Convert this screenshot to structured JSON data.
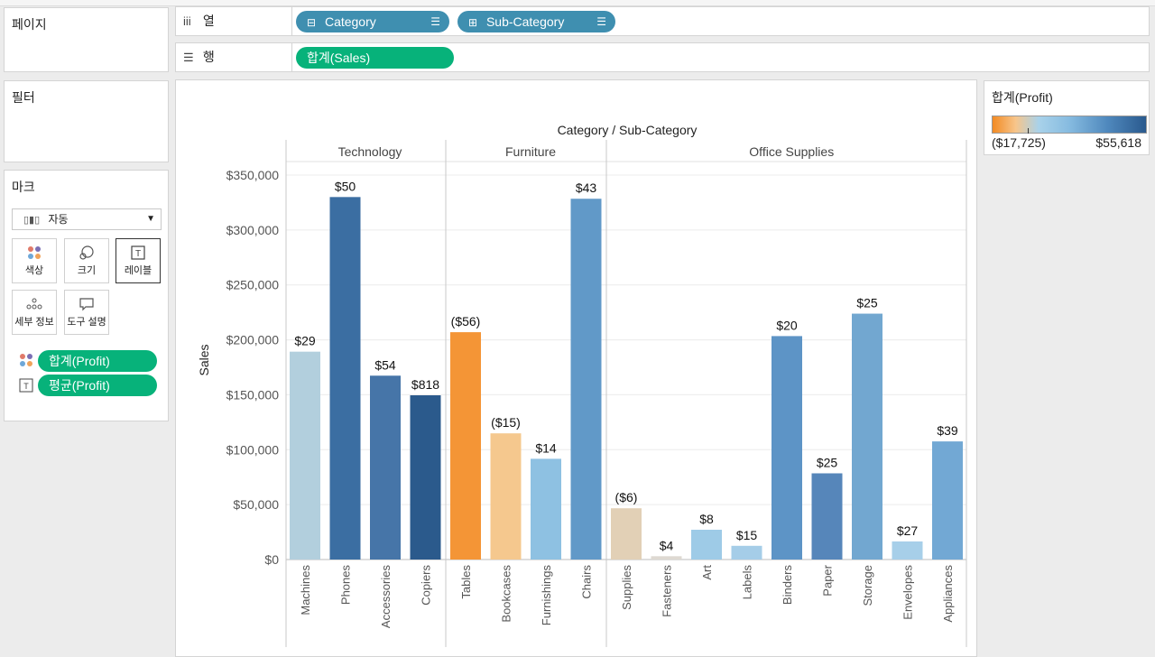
{
  "left_panels": {
    "pages_title": "페이지",
    "filters_title": "필터",
    "marks_title": "마크",
    "mark_type": "자동",
    "mark_buttons": {
      "color": "색상",
      "size": "크기",
      "label": "레이블",
      "detail": "세부 정보",
      "tooltip": "도구 설명"
    },
    "mark_pills": [
      "합계(Profit)",
      "평균(Profit)"
    ]
  },
  "shelves": {
    "columns_label": "열",
    "rows_label": "행",
    "columns": [
      "Category",
      "Sub-Category"
    ],
    "rows": [
      "합계(Sales)"
    ]
  },
  "legend": {
    "title": "합계(Profit)",
    "min": "($17,725)",
    "max": "$55,618"
  },
  "colors": {
    "pill_dimension": "#3f8fb0",
    "pill_measure": "#07b27a"
  },
  "chart_data": {
    "type": "bar",
    "title": "Category / Sub-Category",
    "ylabel": "Sales",
    "ylim": [
      0,
      350000
    ],
    "y_ticks": [
      "$0",
      "$50,000",
      "$100,000",
      "$150,000",
      "$200,000",
      "$250,000",
      "$300,000",
      "$350,000"
    ],
    "groups": [
      {
        "name": "Technology",
        "categories": [
          "Machines",
          "Phones",
          "Accessories",
          "Copiers"
        ],
        "values": [
          189239,
          330007,
          167380,
          149528
        ],
        "labels": [
          "$29",
          "$50",
          "$54",
          "$818"
        ],
        "colors": [
          "#b2cfdd",
          "#3b6ea2",
          "#4675a8",
          "#2b5a8c"
        ]
      },
      {
        "name": "Furniture",
        "categories": [
          "Tables",
          "Bookcases",
          "Furnishings",
          "Chairs"
        ],
        "values": [
          206966,
          114880,
          91705,
          328449
        ],
        "labels": [
          "($56)",
          "($15)",
          "$14",
          "$43"
        ],
        "colors": [
          "#f49536",
          "#f5c88e",
          "#8ec1e2",
          "#6199c8"
        ]
      },
      {
        "name": "Office Supplies",
        "categories": [
          "Supplies",
          "Fasteners",
          "Art",
          "Labels",
          "Binders",
          "Paper",
          "Storage",
          "Envelopes",
          "Appliances"
        ],
        "values": [
          46674,
          3024,
          27119,
          12486,
          203413,
          78479,
          223844,
          16476,
          107532
        ],
        "labels": [
          "($6)",
          "$4",
          "$8",
          "$15",
          "$20",
          "$25",
          "$25",
          "$27",
          "$39"
        ],
        "colors": [
          "#e2d0b6",
          "#ded9d2",
          "#9ecbe7",
          "#a5cde8",
          "#5d94c6",
          "#5686ba",
          "#72a7d0",
          "#a7cfe9",
          "#72a8d4"
        ]
      }
    ]
  }
}
